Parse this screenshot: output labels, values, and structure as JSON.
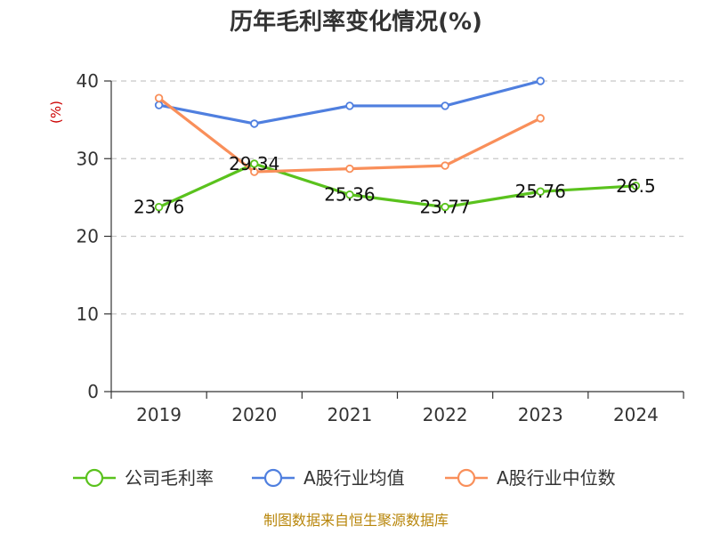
{
  "source_text": "制图数据来自恒生聚源数据库",
  "chart_data": {
    "type": "line",
    "title": "历年毛利率变化情况(%)",
    "ylabel": "(%)",
    "xlabel": "",
    "categories": [
      "2019",
      "2020",
      "2021",
      "2022",
      "2023",
      "2024"
    ],
    "ylim": [
      0,
      40
    ],
    "yticks": [
      0,
      10,
      20,
      30,
      40
    ],
    "grid": true,
    "legend_position": "bottom",
    "series": [
      {
        "name": "公司毛利率",
        "color": "#5ac21d",
        "values": [
          23.76,
          29.34,
          25.36,
          23.77,
          25.76,
          26.5
        ],
        "labels": [
          "23.76",
          "29.34",
          "25.36",
          "23.77",
          "25.76",
          "26.5"
        ]
      },
      {
        "name": "A股行业均值",
        "color": "#4f7fdf",
        "values": [
          36.9,
          34.5,
          36.8,
          36.8,
          40.0,
          null
        ]
      },
      {
        "name": "A股行业中位数",
        "color": "#f98f5a",
        "values": [
          37.8,
          28.3,
          28.7,
          29.1,
          35.2,
          null
        ]
      }
    ]
  }
}
